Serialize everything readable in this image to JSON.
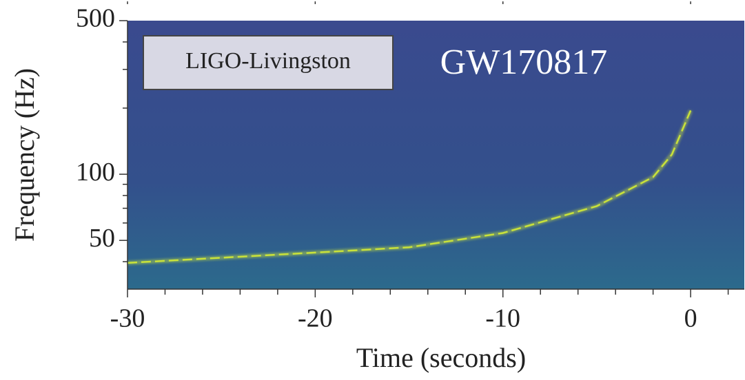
{
  "chart_data": {
    "type": "spectrogram",
    "detector": "LIGO-Livingston",
    "annotation": "GW170817",
    "x_label": "Time (seconds)",
    "y_label": "Frequency (Hz)",
    "x": [
      -30,
      -20,
      -15,
      -10,
      -5,
      -2,
      -1,
      0
    ],
    "values": [
      39.5,
      44,
      46.5,
      54,
      71.6,
      97,
      123,
      195
    ],
    "color": "#c9e23a",
    "xlim": [
      -30,
      2.86
    ],
    "ylim": [
      30,
      500
    ],
    "y_scale": "log",
    "xticks": [
      -30,
      -20,
      -10,
      0
    ],
    "yticks": [
      50,
      100,
      500
    ],
    "x_minor_ticks": [
      -28,
      -26,
      -24,
      -22,
      -18,
      -16,
      -14,
      -12,
      -8,
      -6,
      -4,
      -2,
      2
    ],
    "y_minor_ticks": [
      40,
      60,
      70,
      80,
      90,
      200,
      300,
      400
    ]
  }
}
